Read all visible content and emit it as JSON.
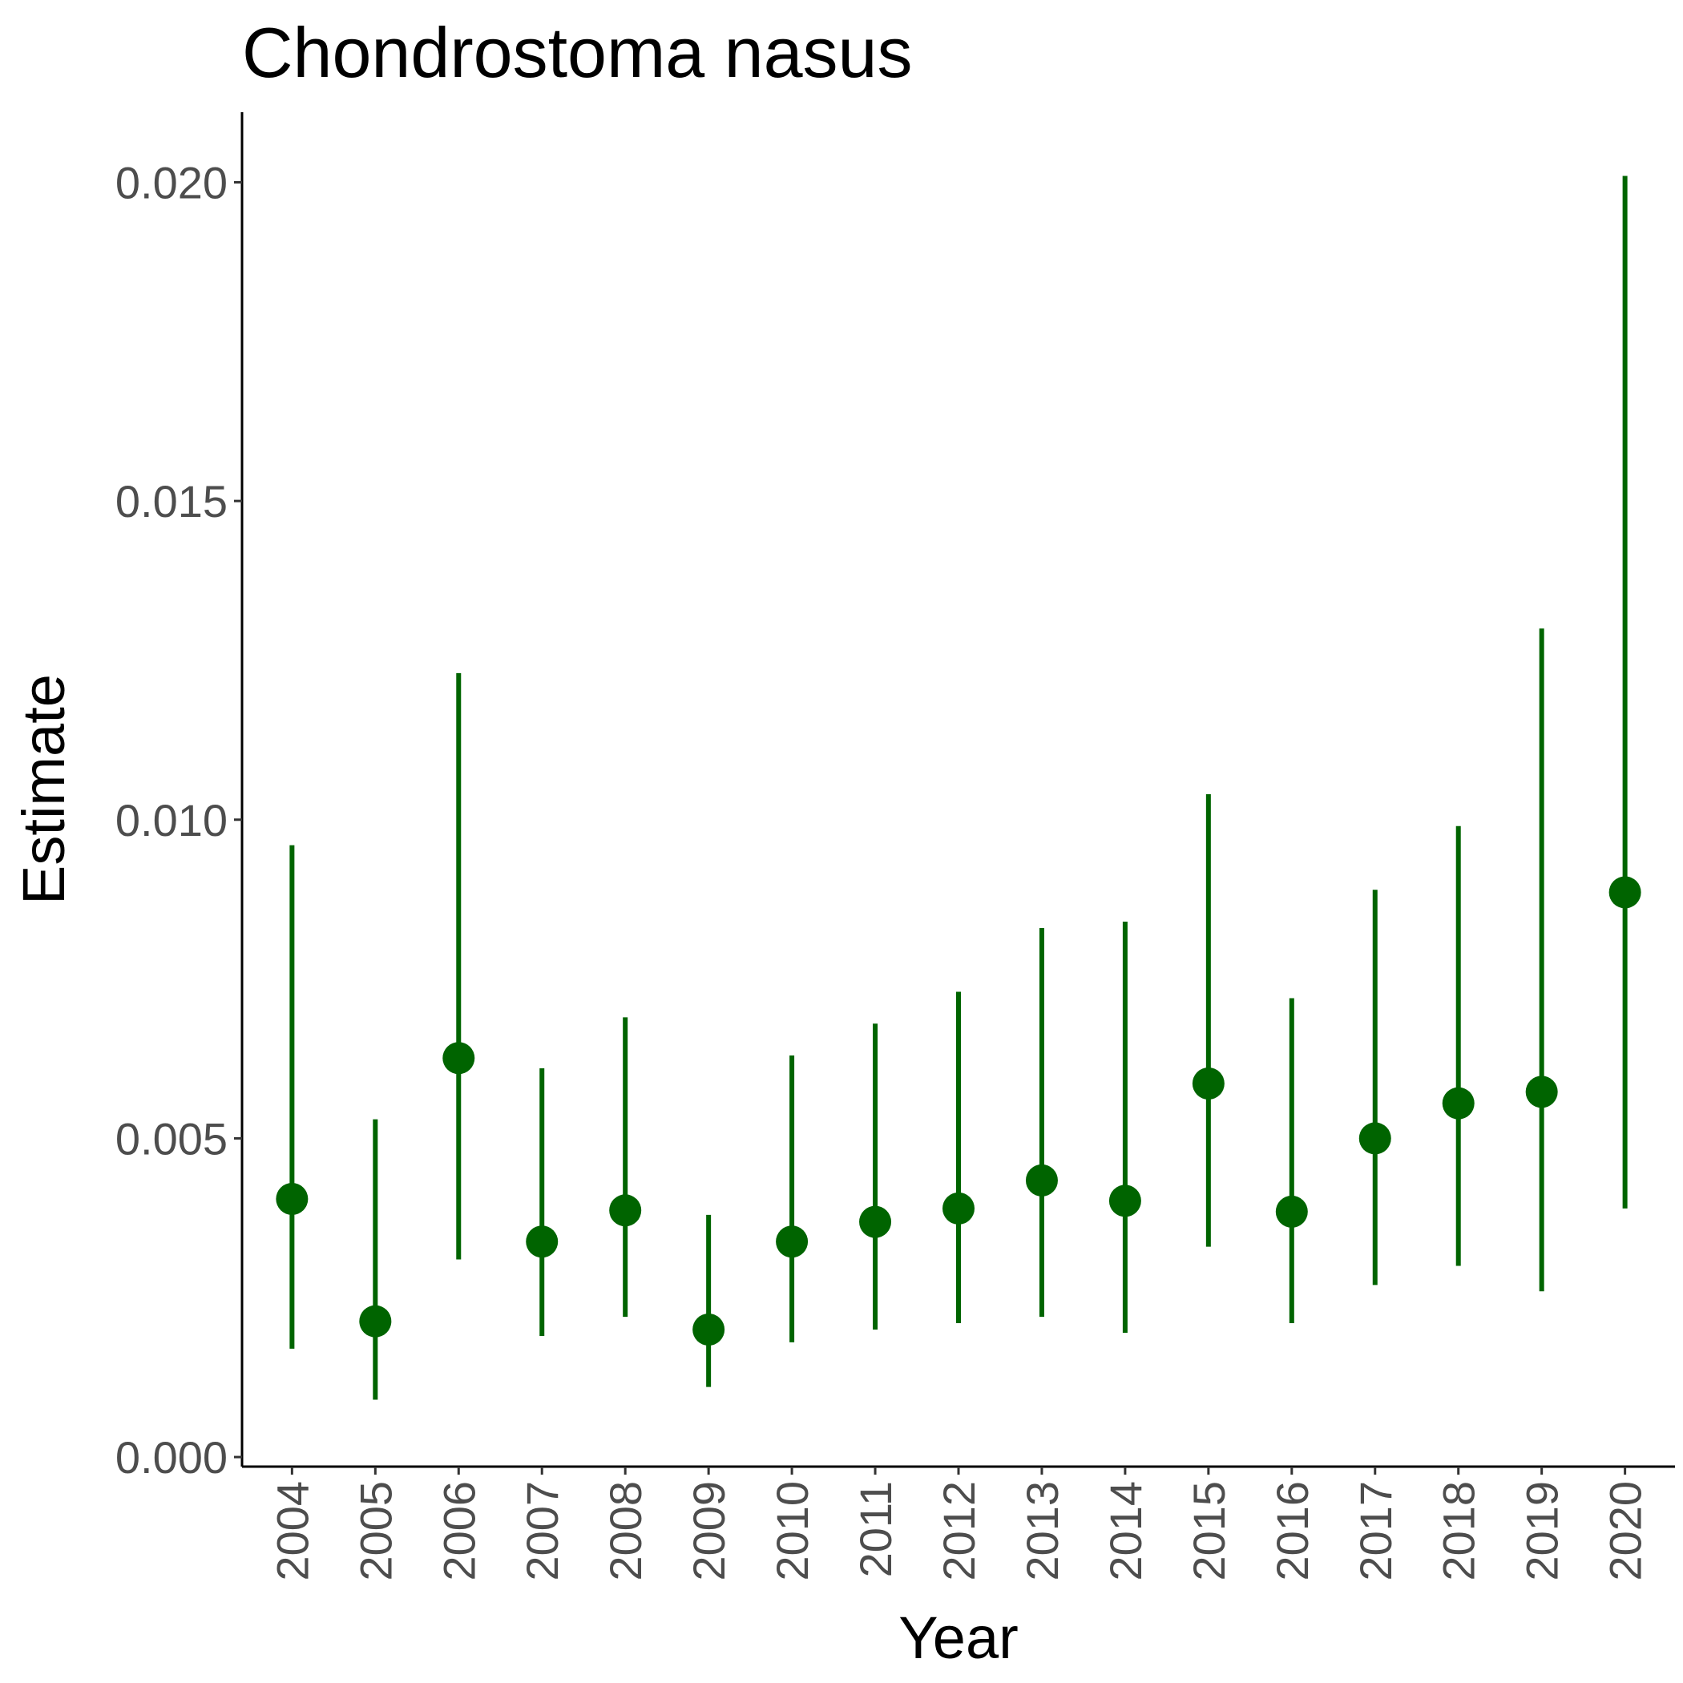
{
  "chart_data": {
    "type": "scatter",
    "title": "Chondrostoma nasus",
    "xlabel": "Year",
    "ylabel": "Estimate",
    "ylim": [
      -0.00015,
      0.0211
    ],
    "yticks": [
      0.0,
      0.005,
      0.01,
      0.015,
      0.02
    ],
    "ytick_labels": [
      "0.000",
      "0.005",
      "0.010",
      "0.015",
      "0.020"
    ],
    "grid": false,
    "legend": "none",
    "color": "#006400",
    "x": [
      "2004",
      "2005",
      "2006",
      "2007",
      "2008",
      "2009",
      "2010",
      "2011",
      "2012",
      "2013",
      "2014",
      "2015",
      "2016",
      "2017",
      "2018",
      "2019",
      "2020"
    ],
    "series": [
      {
        "estimate": [
          0.00405,
          0.00213,
          0.00626,
          0.00338,
          0.00387,
          0.002,
          0.00338,
          0.00369,
          0.0039,
          0.00434,
          0.00402,
          0.00586,
          0.00385,
          0.005,
          0.00555,
          0.00573,
          0.00886
        ],
        "lower": [
          0.0017,
          0.0009,
          0.0031,
          0.0019,
          0.0022,
          0.0011,
          0.0018,
          0.002,
          0.0021,
          0.0022,
          0.00195,
          0.0033,
          0.0021,
          0.0027,
          0.003,
          0.0026,
          0.0039
        ],
        "upper": [
          0.0096,
          0.0053,
          0.0123,
          0.0061,
          0.0069,
          0.0038,
          0.0063,
          0.0068,
          0.0073,
          0.0083,
          0.0084,
          0.0104,
          0.0072,
          0.0089,
          0.0099,
          0.013,
          0.0201
        ]
      }
    ]
  }
}
